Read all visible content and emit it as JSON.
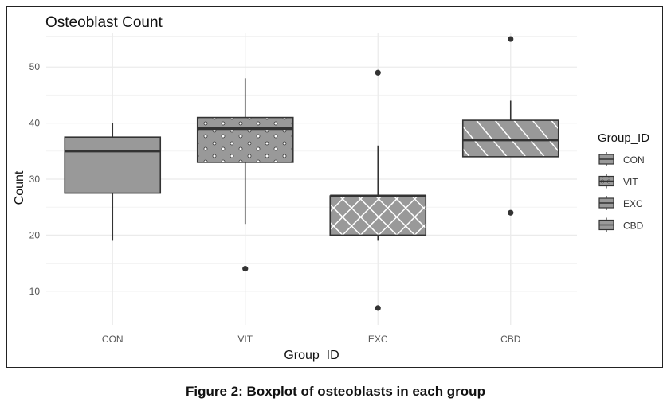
{
  "caption": "Figure 2: Boxplot of osteoblasts in each group",
  "chart_data": {
    "type": "box",
    "title": "Osteoblast Count",
    "xlabel": "Group_ID",
    "ylabel": "Count",
    "ylim": [
      4,
      56
    ],
    "yticks": [
      10,
      20,
      30,
      40,
      50
    ],
    "grid": true,
    "legend": {
      "title": "Group_ID",
      "position": "right"
    },
    "categories": [
      "CON",
      "VIT",
      "EXC",
      "CBD"
    ],
    "boxes": [
      {
        "group": "CON",
        "whisker_low": 19,
        "q1": 27.5,
        "median": 35,
        "q3": 37.5,
        "whisker_high": 40,
        "outliers": [],
        "pattern": "none"
      },
      {
        "group": "VIT",
        "whisker_low": 22,
        "q1": 33,
        "median": 39,
        "q3": 41,
        "whisker_high": 48,
        "outliers": [
          14
        ],
        "pattern": "circles"
      },
      {
        "group": "EXC",
        "whisker_low": 19,
        "q1": 20,
        "median": 27,
        "q3": 27,
        "whisker_high": 36,
        "outliers": [
          49,
          7
        ],
        "pattern": "crosshatch"
      },
      {
        "group": "CBD",
        "whisker_low": 34,
        "q1": 34,
        "median": 37,
        "q3": 40.5,
        "whisker_high": 44,
        "outliers": [
          55,
          24
        ],
        "pattern": "stripe"
      }
    ],
    "colors": {
      "fill": "#999999",
      "stroke": "#333333",
      "grid": "#ebebeb",
      "point": "#333333"
    }
  }
}
